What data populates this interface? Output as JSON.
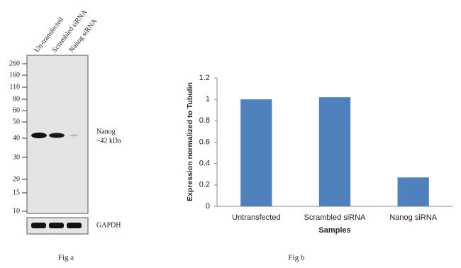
{
  "figure_a": {
    "lanes": [
      "Un-transfected",
      "Scrambled siRNA",
      "Nanog siRNA"
    ],
    "markers": [
      260,
      160,
      110,
      80,
      60,
      50,
      40,
      30,
      20,
      15,
      10
    ],
    "band_label": [
      "Nanog",
      "~42 kDa"
    ],
    "loading_control": "GAPDH",
    "caption": "Fig a"
  },
  "chart_data": {
    "type": "bar",
    "y_label": "Expression  normalized to Tubulin",
    "x_label": "Samples",
    "categories": [
      "Untransfected",
      "Scrambled siRNA",
      "Nanog siRNA"
    ],
    "values": [
      1.0,
      1.02,
      0.27
    ],
    "color": "#4f81bd",
    "ylim": [
      0,
      1.2
    ],
    "yticks": [
      0,
      0.2,
      0.4,
      0.6,
      0.8,
      1,
      1.2
    ],
    "grid": false
  },
  "figure_b": {
    "caption": "Fig b"
  }
}
